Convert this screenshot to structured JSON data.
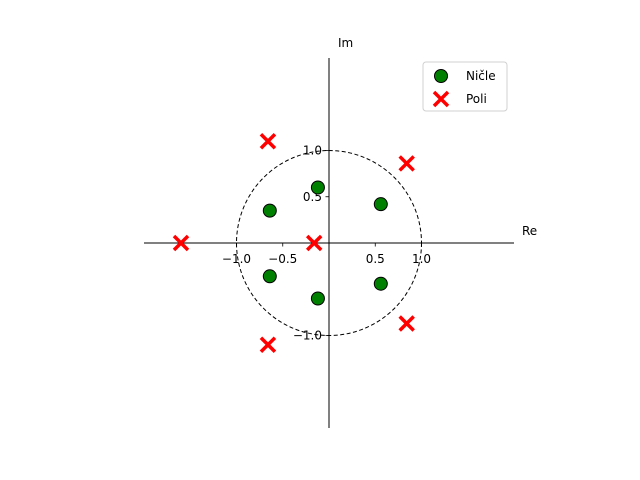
{
  "chart_data": {
    "type": "scatter",
    "title": "",
    "xlabel": "Re",
    "ylabel": "Im",
    "xlim": [
      -2.0,
      2.0
    ],
    "ylim": [
      -2.0,
      2.0
    ],
    "xticks": [
      -1.0,
      -0.5,
      0.5,
      1.0
    ],
    "yticks": [
      -1.0,
      0.5,
      1.0
    ],
    "xtick_labels": [
      "−1.0",
      "−0.5",
      "0.5",
      "1.0"
    ],
    "ytick_labels": [
      "−1.0",
      "0.5",
      "1.0"
    ],
    "unit_circle": {
      "radius": 1.0,
      "style": "dashed"
    },
    "grid": false,
    "legend_position": "top-right",
    "series": [
      {
        "name": "Ničle",
        "marker": "circle",
        "color": "#008000",
        "points": [
          {
            "x": -0.12,
            "y": 0.6
          },
          {
            "x": -0.12,
            "y": -0.6
          },
          {
            "x": -0.64,
            "y": 0.35
          },
          {
            "x": -0.64,
            "y": -0.36
          },
          {
            "x": 0.56,
            "y": 0.42
          },
          {
            "x": 0.56,
            "y": -0.44
          }
        ]
      },
      {
        "name": "Poli",
        "marker": "x",
        "color": "#ff0000",
        "points": [
          {
            "x": -0.16,
            "y": 0.0
          },
          {
            "x": -1.6,
            "y": 0.0
          },
          {
            "x": -0.66,
            "y": 1.1
          },
          {
            "x": -0.66,
            "y": -1.1
          },
          {
            "x": 0.84,
            "y": 0.86
          },
          {
            "x": 0.84,
            "y": -0.87
          }
        ]
      }
    ]
  }
}
